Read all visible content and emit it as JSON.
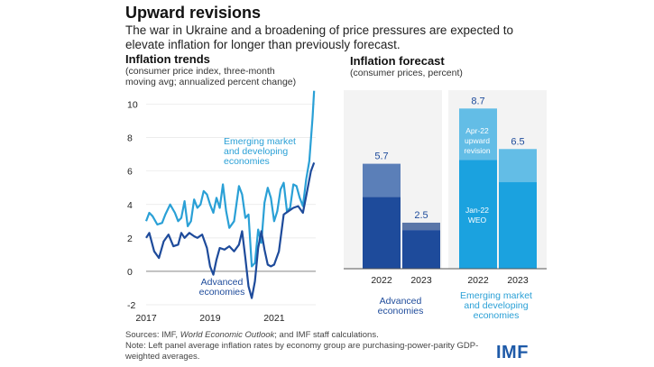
{
  "header": {
    "title": "Upward revisions",
    "subtitle": "The war in Ukraine and a broadening of price pressures are expected to elevate inflation for longer than previously forecast."
  },
  "left_panel": {
    "title": "Inflation trends",
    "subtitle_line1": "(consumer price index, three-month",
    "subtitle_line2": "moving avg; annualized percent change)",
    "label_em_1": "Emerging market",
    "label_em_2": "and developing",
    "label_em_3": "economies",
    "label_adv_1": "Advanced",
    "label_adv_2": "economies"
  },
  "right_panel": {
    "title": "Inflation forecast",
    "subtitle": "(consumer prices, percent)",
    "group_adv_1": "Advanced",
    "group_adv_2": "economies",
    "group_em_1": "Emerging market",
    "group_em_2": "and developing",
    "group_em_3": "economies",
    "ann_apr_1": "Apr-22",
    "ann_apr_2": "upward",
    "ann_apr_3": "revision",
    "ann_jan_1": "Jan-22",
    "ann_jan_2": "WEO"
  },
  "footer": {
    "sources_prefix": "Sources: IMF, ",
    "sources_italic": "World Economic Outlook",
    "sources_suffix": "; and IMF staff calculations.",
    "note": "Note: Left panel average inflation rates by economy group are purchasing-power-parity GDP-weighted averages.",
    "logo": "IMF"
  },
  "colors": {
    "advanced": "#1e4b9b",
    "emerging": "#2aa0d6",
    "adv_light": "#5b7fb8",
    "em_light": "#63bde6",
    "axis": "#444444"
  },
  "chart_data": [
    {
      "type": "line",
      "title": "Inflation trends",
      "xlabel": "",
      "ylabel": "consumer price index, three-month moving avg; annualized percent change",
      "xlim": [
        2017,
        2022.3
      ],
      "ylim": [
        -2,
        11
      ],
      "yticks": [
        -2,
        0,
        2,
        4,
        6,
        8,
        10
      ],
      "xticks": [
        2017,
        2019,
        2021
      ],
      "series": [
        {
          "name": "Emerging market and developing economies",
          "x": [
            2017,
            2017.1,
            2017.2,
            2017.35,
            2017.5,
            2017.6,
            2017.75,
            2017.9,
            2018,
            2018.1,
            2018.2,
            2018.3,
            2018.4,
            2018.5,
            2018.6,
            2018.7,
            2018.8,
            2018.9,
            2019,
            2019.1,
            2019.2,
            2019.3,
            2019.4,
            2019.5,
            2019.6,
            2019.75,
            2019.9,
            2020,
            2020.1,
            2020.2,
            2020.3,
            2020.4,
            2020.5,
            2020.6,
            2020.7,
            2020.8,
            2020.9,
            2021,
            2021.1,
            2021.2,
            2021.3,
            2021.4,
            2021.5,
            2021.6,
            2021.7,
            2021.8,
            2021.9,
            2022,
            2022.1,
            2022.2,
            2022.25
          ],
          "values": [
            3,
            3.5,
            3.3,
            2.8,
            2.9,
            3.4,
            4.0,
            3.5,
            3.0,
            3.2,
            4.2,
            2.7,
            3.0,
            4.3,
            3.8,
            4.0,
            4.8,
            4.6,
            4.0,
            3.5,
            4.4,
            3.8,
            5.2,
            3.6,
            2.6,
            3.0,
            5.1,
            4.6,
            3.2,
            3.4,
            0.3,
            0.5,
            2.5,
            1.7,
            4.1,
            5.0,
            4.4,
            3.0,
            3.6,
            4.9,
            5.3,
            3.6,
            3.8,
            5.2,
            5.1,
            4.4,
            3.9,
            5.5,
            6.6,
            9.2,
            10.8
          ]
        },
        {
          "name": "Advanced economies",
          "x": [
            2017,
            2017.1,
            2017.25,
            2017.4,
            2017.55,
            2017.7,
            2017.85,
            2018,
            2018.1,
            2018.2,
            2018.35,
            2018.5,
            2018.6,
            2018.75,
            2018.9,
            2019,
            2019.1,
            2019.2,
            2019.3,
            2019.45,
            2019.6,
            2019.75,
            2019.9,
            2020,
            2020.1,
            2020.2,
            2020.3,
            2020.4,
            2020.5,
            2020.6,
            2020.7,
            2020.8,
            2020.9,
            2021,
            2021.15,
            2021.3,
            2021.45,
            2021.6,
            2021.75,
            2021.9,
            2022,
            2022.15,
            2022.25
          ],
          "values": [
            2.0,
            2.3,
            1.2,
            0.8,
            1.8,
            2.2,
            1.5,
            1.6,
            2.3,
            2.0,
            2.3,
            2.1,
            2.0,
            2.2,
            1.4,
            0.3,
            -0.2,
            0.7,
            1.4,
            1.3,
            1.5,
            1.2,
            1.6,
            2.4,
            0.8,
            -0.9,
            -1.6,
            -0.6,
            1.4,
            2.4,
            1.3,
            0.4,
            0.3,
            0.4,
            1.2,
            3.4,
            3.6,
            3.8,
            3.9,
            3.5,
            4.5,
            6.0,
            6.5
          ]
        }
      ]
    },
    {
      "type": "bar",
      "title": "Inflation forecast",
      "ylabel": "consumer prices, percent",
      "ylim": [
        0,
        9.5
      ],
      "categories": [
        "2022",
        "2023",
        "2022",
        "2023"
      ],
      "groups": [
        "Advanced economies",
        "Advanced economies",
        "Emerging market and developing economies",
        "Emerging market and developing economies"
      ],
      "series": [
        {
          "name": "Jan-22 WEO",
          "values": [
            3.9,
            2.1,
            5.9,
            4.7
          ]
        },
        {
          "name": "Apr-22 upward revision",
          "values": [
            1.8,
            0.4,
            2.8,
            1.8
          ]
        }
      ],
      "totals": [
        5.7,
        2.5,
        8.7,
        6.5
      ],
      "total_labels": [
        "5.7",
        "2.5",
        "8.7",
        "6.5"
      ]
    }
  ]
}
